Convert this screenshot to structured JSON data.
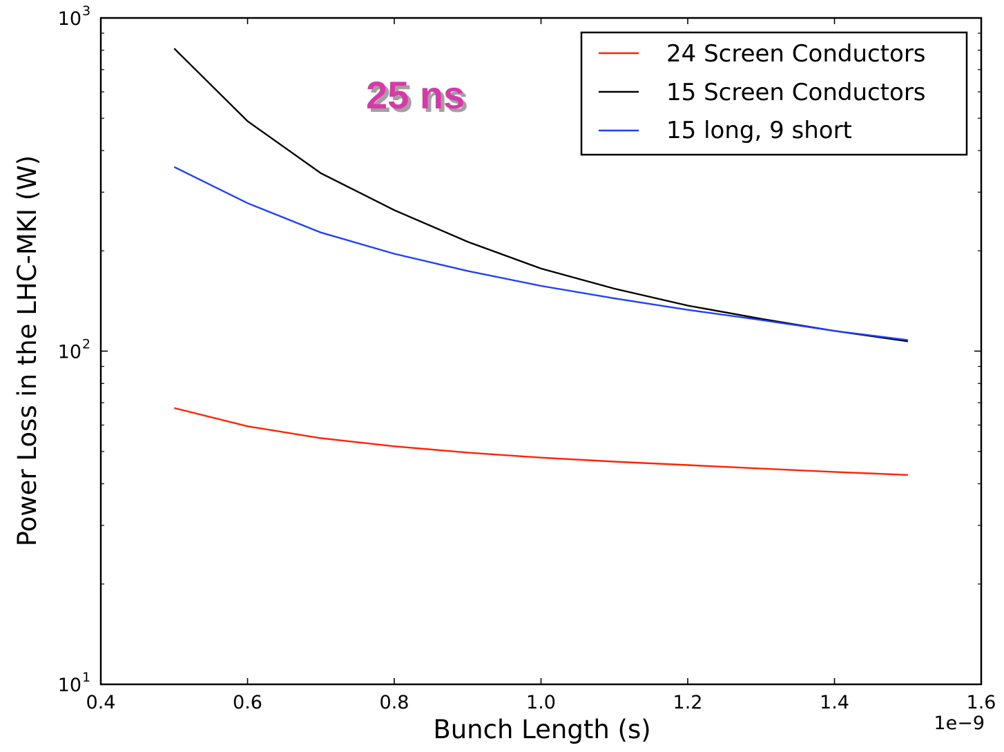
{
  "chart_data": {
    "type": "line",
    "title": "",
    "xlabel": "Bunch Length (s)",
    "ylabel": "Power Loss in the LHC-MKI (W)",
    "x_offset_label": "1e−9",
    "xlim": [
      4e-10,
      1.6e-09
    ],
    "ylim": [
      10,
      1000
    ],
    "yscale": "log",
    "grid": false,
    "legend_position": "top-right",
    "x_tick_labels": [
      "0.4",
      "0.6",
      "0.8",
      "1.0",
      "1.2",
      "1.4",
      "1.6"
    ],
    "x_tick_values": [
      4e-10,
      6e-10,
      8e-10,
      1e-09,
      1.2e-09,
      1.4e-09,
      1.6e-09
    ],
    "y_tick_labels": [
      {
        "base": "10",
        "exp": "1",
        "value": 10
      },
      {
        "base": "10",
        "exp": "2",
        "value": 100
      },
      {
        "base": "10",
        "exp": "3",
        "value": 1000
      }
    ],
    "annotation": {
      "text": "25 ns",
      "color": "#d63aa8"
    },
    "x": [
      5e-10,
      6e-10,
      7e-10,
      8e-10,
      9e-10,
      1e-09,
      1.1e-09,
      1.2e-09,
      1.3e-09,
      1.4e-09,
      1.5e-09
    ],
    "series": [
      {
        "name": "24 Screen Conductors",
        "color": "#ff2200",
        "values": [
          67.5,
          59.5,
          54.8,
          51.8,
          49.6,
          47.9,
          46.6,
          45.5,
          44.4,
          43.4,
          42.5
        ]
      },
      {
        "name": "15 Screen Conductors",
        "color": "#000000",
        "values": [
          810,
          490,
          342,
          265,
          213,
          177,
          154,
          137,
          125,
          115,
          107
        ]
      },
      {
        "name": "15 long, 9 short",
        "color": "#1f3fff",
        "values": [
          357,
          278,
          227,
          196,
          174,
          157,
          144,
          133,
          124,
          115,
          108
        ]
      }
    ]
  }
}
